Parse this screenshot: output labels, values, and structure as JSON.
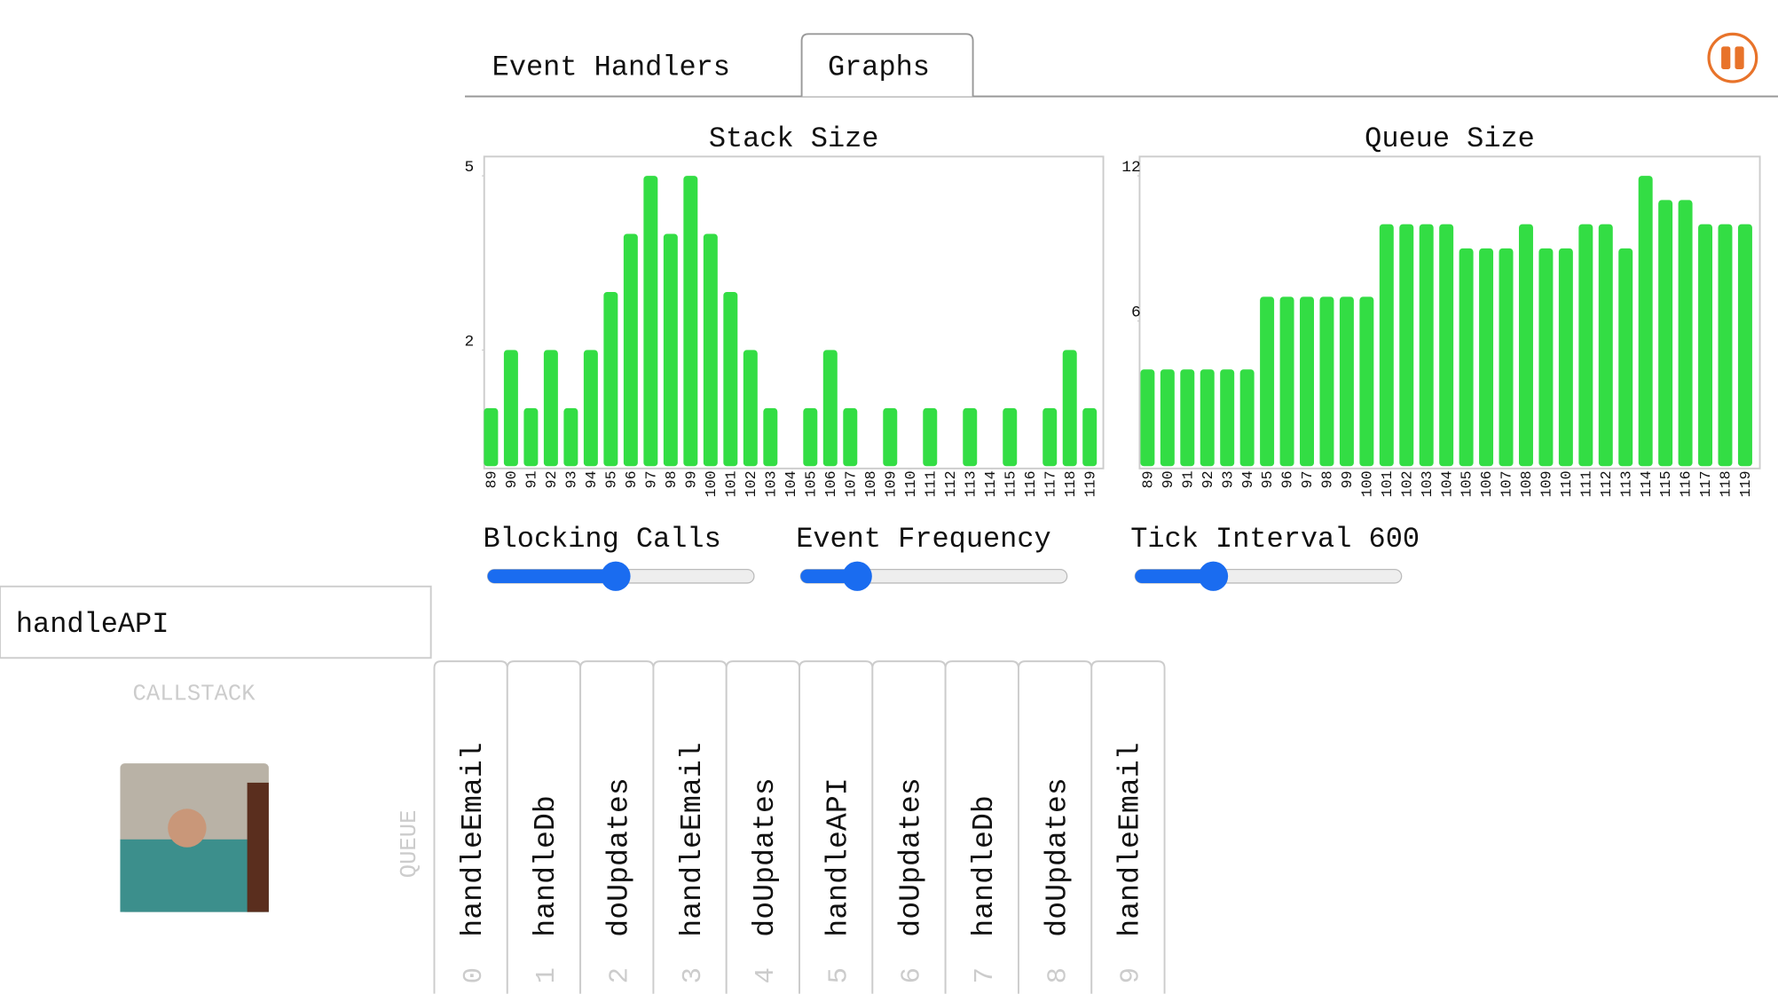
{
  "tabs": [
    "Event Handlers",
    "Graphs"
  ],
  "chart_data": [
    {
      "type": "bar",
      "title": "Stack Size",
      "color": "#33dd44",
      "categories": [
        "89",
        "90",
        "91",
        "92",
        "93",
        "94",
        "95",
        "96",
        "97",
        "98",
        "99",
        "100",
        "101",
        "102",
        "103",
        "104",
        "105",
        "106",
        "107",
        "108",
        "109",
        "110",
        "111",
        "112",
        "113",
        "114",
        "115",
        "116",
        "117",
        "118",
        "119"
      ],
      "values": [
        1,
        2,
        1,
        2,
        1,
        2,
        3,
        4,
        5,
        4,
        5,
        4,
        3,
        2,
        1,
        0,
        1,
        2,
        1,
        0,
        1,
        0,
        1,
        0,
        1,
        0,
        1,
        0,
        1,
        2,
        1
      ],
      "ylim": [
        0,
        5
      ],
      "yticks": [
        2,
        5
      ]
    },
    {
      "type": "bar",
      "title": "Queue Size",
      "color": "#33dd44",
      "categories": [
        "89",
        "90",
        "91",
        "92",
        "93",
        "94",
        "95",
        "96",
        "97",
        "98",
        "99",
        "100",
        "101",
        "102",
        "103",
        "104",
        "105",
        "106",
        "107",
        "108",
        "109",
        "110",
        "111",
        "112",
        "113",
        "114",
        "115",
        "116",
        "117",
        "118",
        "119"
      ],
      "values": [
        4,
        4,
        4,
        4,
        4,
        4,
        7,
        7,
        7,
        7,
        7,
        7,
        10,
        10,
        10,
        10,
        9,
        9,
        9,
        10,
        9,
        9,
        10,
        10,
        9,
        12,
        11,
        11,
        10,
        10,
        10
      ],
      "ylim": [
        0,
        12
      ],
      "yticks": [
        6,
        12
      ]
    }
  ],
  "controls": [
    {
      "label": "Blocking Calls"
    },
    {
      "label": "Event Frequency"
    },
    {
      "label": "Tick Interval",
      "value": 600
    }
  ],
  "current_handler": "handleAPI",
  "callstack_label": "CALLSTACK",
  "queue_label": "QUEUE",
  "queue": [
    {
      "index": 0,
      "name": "handleEmail"
    },
    {
      "index": 1,
      "name": "handleDb"
    },
    {
      "index": 2,
      "name": "doUpdates"
    },
    {
      "index": 3,
      "name": "handleEmail"
    },
    {
      "index": 4,
      "name": "doUpdates"
    },
    {
      "index": 5,
      "name": "handleAPI"
    },
    {
      "index": 6,
      "name": "doUpdates"
    },
    {
      "index": 7,
      "name": "handleDb"
    },
    {
      "index": 8,
      "name": "doUpdates"
    },
    {
      "index": 9,
      "name": "handleEmail"
    }
  ]
}
